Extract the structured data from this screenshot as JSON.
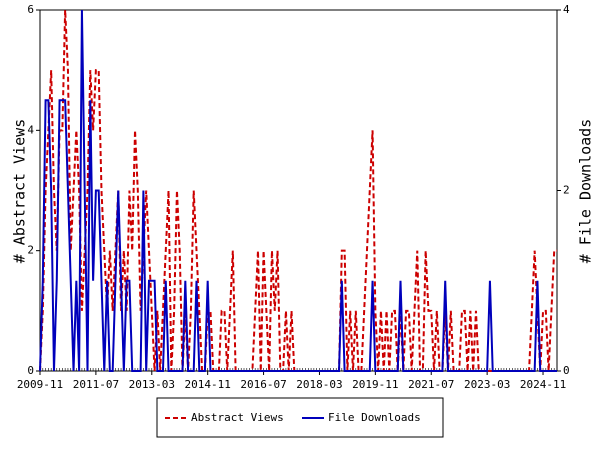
{
  "chart_data": {
    "type": "line",
    "ylabel": "# Abstract Views",
    "y2label": "# File Downloads",
    "x": [
      "2009-11",
      "2009-12",
      "2010-01",
      "2010-02",
      "2010-03",
      "2010-04",
      "2010-05",
      "2010-06",
      "2010-07",
      "2010-08",
      "2010-09",
      "2010-10",
      "2010-11",
      "2010-12",
      "2011-01",
      "2011-02",
      "2011-03",
      "2011-04",
      "2011-05",
      "2011-06",
      "2011-07",
      "2011-08",
      "2011-09",
      "2011-10",
      "2011-11",
      "2011-12",
      "2012-01",
      "2012-02",
      "2012-03",
      "2012-04",
      "2012-05",
      "2012-06",
      "2012-07",
      "2012-08",
      "2012-09",
      "2012-10",
      "2012-11",
      "2012-12",
      "2013-01",
      "2013-02",
      "2013-03",
      "2013-04",
      "2013-05",
      "2013-06",
      "2013-07",
      "2013-08",
      "2013-09",
      "2013-10",
      "2013-11",
      "2013-12",
      "2014-01",
      "2014-02",
      "2014-03",
      "2014-04",
      "2014-05",
      "2014-06",
      "2014-07",
      "2014-08",
      "2014-09",
      "2014-10",
      "2014-11",
      "2014-12",
      "2015-01",
      "2015-02",
      "2015-03",
      "2015-04",
      "2015-05",
      "2015-06",
      "2015-07",
      "2015-08",
      "2015-09",
      "2015-10",
      "2015-11",
      "2015-12",
      "2016-01",
      "2016-02",
      "2016-03",
      "2016-04",
      "2016-05",
      "2016-06",
      "2016-07",
      "2016-08",
      "2016-09",
      "2016-10",
      "2016-11",
      "2016-12",
      "2017-01",
      "2017-02",
      "2017-03",
      "2017-04",
      "2017-05",
      "2017-06",
      "2017-07",
      "2017-08",
      "2017-09",
      "2017-10",
      "2017-11",
      "2017-12",
      "2018-01",
      "2018-02",
      "2018-03",
      "2018-04",
      "2018-05",
      "2018-06",
      "2018-07",
      "2018-08",
      "2018-09",
      "2018-10",
      "2018-11",
      "2018-12",
      "2019-01",
      "2019-02",
      "2019-03",
      "2019-04",
      "2019-05",
      "2019-06",
      "2019-07",
      "2019-08",
      "2019-09",
      "2019-10",
      "2019-11",
      "2019-12",
      "2020-01",
      "2020-02",
      "2020-03",
      "2020-04",
      "2020-05",
      "2020-06",
      "2020-07",
      "2020-08",
      "2020-09",
      "2020-10",
      "2020-11",
      "2020-12",
      "2021-01",
      "2021-02",
      "2021-03",
      "2021-04",
      "2021-05",
      "2021-06",
      "2021-07",
      "2021-08",
      "2021-09",
      "2021-10",
      "2021-11",
      "2021-12",
      "2022-01",
      "2022-02",
      "2022-03",
      "2022-04",
      "2022-05",
      "2022-06",
      "2022-07",
      "2022-08",
      "2022-09",
      "2022-10",
      "2022-11",
      "2022-12",
      "2023-01",
      "2023-02",
      "2023-03",
      "2023-04",
      "2023-05",
      "2023-06",
      "2023-07",
      "2023-08",
      "2023-09",
      "2023-10",
      "2023-11",
      "2023-12",
      "2024-01",
      "2024-02",
      "2024-03",
      "2024-04",
      "2024-05",
      "2024-06",
      "2024-07",
      "2024-08",
      "2024-09",
      "2024-10",
      "2024-11",
      "2024-12",
      "2025-01",
      "2025-02",
      "2025-03",
      "2025-04"
    ],
    "xticks": [
      "2009-11",
      "2011-07",
      "2013-03",
      "2014-11",
      "2016-07",
      "2018-03",
      "2019-11",
      "2021-07",
      "2023-03",
      "2024-11"
    ],
    "ylim": [
      0,
      6
    ],
    "yticks": [
      0,
      2,
      4,
      6
    ],
    "y2lim": [
      0,
      4
    ],
    "y2ticks": [
      0,
      2,
      4
    ],
    "series": [
      {
        "name": "Abstract Views",
        "color": "#cc0000",
        "dash": true,
        "values": [
          0,
          1,
          3,
          4,
          5,
          3,
          2,
          4,
          4,
          6,
          5,
          2,
          3,
          4,
          3,
          1,
          2,
          3,
          5,
          4,
          5,
          5,
          3,
          2,
          1,
          2,
          1,
          2,
          3,
          1,
          2,
          1,
          3,
          2,
          4,
          3,
          1,
          2,
          3,
          2,
          1,
          0,
          1,
          0,
          1,
          2,
          3,
          0,
          1,
          3,
          2,
          0,
          1,
          0,
          1,
          3,
          2,
          1,
          0,
          0,
          1,
          1,
          0,
          0,
          0,
          1,
          1,
          0,
          1,
          2,
          0,
          0,
          0,
          0,
          0,
          0,
          0,
          1,
          2,
          0,
          2,
          1,
          0,
          2,
          1,
          2,
          0,
          0,
          1,
          0,
          1,
          0,
          0,
          0,
          0,
          0,
          0,
          0,
          0,
          0,
          0,
          0,
          0,
          0,
          0,
          0,
          0,
          0,
          2,
          2,
          0,
          1,
          0,
          1,
          0,
          0,
          1,
          2,
          3,
          4,
          1,
          0,
          1,
          0,
          1,
          0,
          1,
          1,
          0,
          1,
          0,
          1,
          1,
          0,
          1,
          2,
          0,
          0,
          2,
          1,
          1,
          0,
          1,
          0,
          0,
          1,
          0,
          1,
          0,
          0,
          0,
          1,
          1,
          0,
          1,
          0,
          1,
          0,
          0,
          0,
          0,
          0,
          0,
          0,
          0,
          0,
          0,
          0,
          0,
          0,
          0,
          0,
          0,
          0,
          0,
          0,
          1,
          2,
          1,
          0,
          1,
          1,
          0,
          1,
          2,
          2
        ]
      },
      {
        "name": "File Downloads",
        "color": "#0000bb",
        "dash": false,
        "axis": "y2",
        "values": [
          0,
          1,
          3,
          3,
          2,
          0,
          1,
          3,
          3,
          3,
          2,
          1,
          0,
          1,
          0,
          4,
          2,
          0,
          3,
          1,
          2,
          2,
          1,
          0,
          1,
          0,
          0,
          1,
          2,
          1,
          0,
          1,
          1,
          0,
          0,
          0,
          0,
          2,
          0,
          1,
          1,
          1,
          0,
          0,
          0,
          1,
          0,
          0,
          0,
          0,
          0,
          0,
          1,
          0,
          0,
          0,
          1,
          0,
          0,
          0,
          1,
          0,
          0,
          0,
          0,
          0,
          0,
          0,
          0,
          0,
          0,
          0,
          0,
          0,
          0,
          0,
          0,
          0,
          0,
          0,
          0,
          0,
          0,
          0,
          0,
          0,
          0,
          0,
          0,
          0,
          0,
          0,
          0,
          0,
          0,
          0,
          0,
          0,
          0,
          0,
          0,
          0,
          0,
          0,
          0,
          0,
          0,
          0,
          1,
          0,
          0,
          0,
          0,
          0,
          0,
          0,
          0,
          0,
          0,
          1,
          0,
          0,
          0,
          0,
          0,
          0,
          0,
          0,
          0,
          1,
          0,
          0,
          0,
          0,
          0,
          0,
          0,
          0,
          0,
          0,
          0,
          0,
          0,
          0,
          0,
          1,
          0,
          0,
          0,
          0,
          0,
          0,
          0,
          0,
          0,
          0,
          0,
          0,
          0,
          0,
          0,
          1,
          0,
          0,
          0,
          0,
          0,
          0,
          0,
          0,
          0,
          0,
          0,
          0,
          0,
          0,
          0,
          0,
          1,
          0,
          0,
          0,
          0,
          0,
          0,
          0
        ]
      }
    ]
  }
}
